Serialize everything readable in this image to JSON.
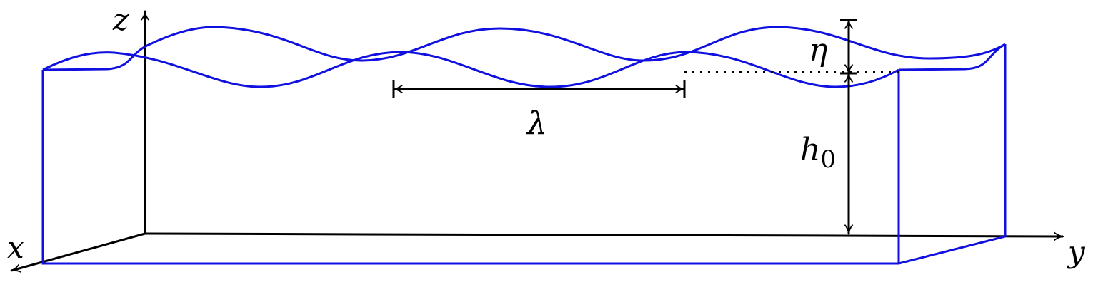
{
  "labels": {
    "z": "z",
    "x": "x",
    "y": "y",
    "lambda": "λ",
    "eta": "η",
    "h": "h",
    "h_sub": "0"
  }
}
